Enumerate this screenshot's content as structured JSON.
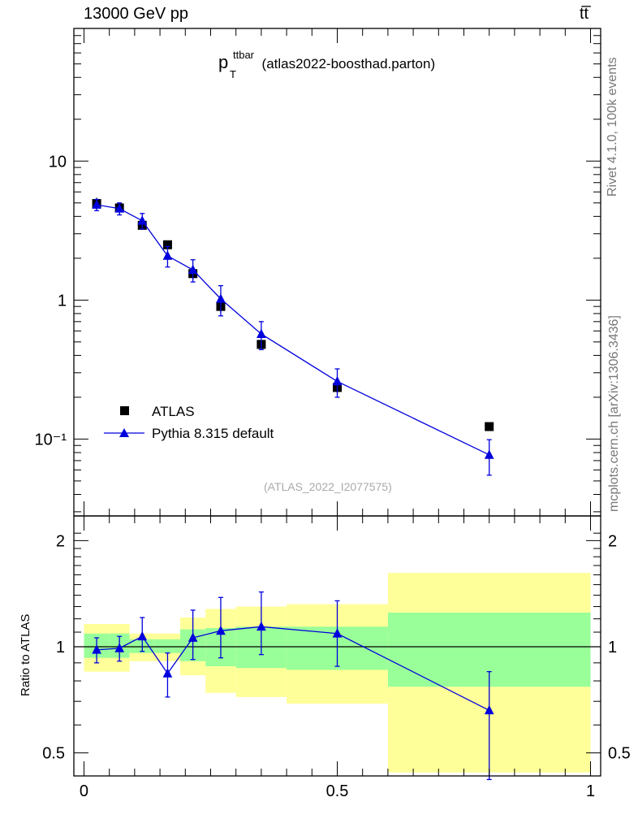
{
  "header": {
    "left": "13000 GeV pp",
    "right": "tt̅"
  },
  "side_labels": {
    "rivet": "Rivet 4.1.0,  100k events",
    "mcplots": "mcplots.cern.ch [arXiv:1306.3436]"
  },
  "chart_data": [
    {
      "type": "scatter",
      "title_main": "p",
      "title_sup": "ttbar",
      "title_sub": "T",
      "title_rest": "(atlas2022-boosthad.parton)",
      "watermark": "(ATLAS_2022_I2077575)",
      "yscale": "log",
      "ylim": [
        0.028,
        90
      ],
      "xlim": [
        -0.02,
        1.02
      ],
      "ytick_labels": [
        "10",
        "1",
        "10⁻¹"
      ],
      "legend": {
        "placement": "bottom-left",
        "entries": [
          "ATLAS",
          "Pythia 8.315 default"
        ]
      },
      "series": [
        {
          "name": "ATLAS",
          "marker": "square",
          "color": "#000000",
          "x": [
            0.025,
            0.07,
            0.115,
            0.165,
            0.215,
            0.27,
            0.35,
            0.5,
            0.8
          ],
          "y": [
            4.95,
            4.6,
            3.45,
            2.5,
            1.55,
            0.9,
            0.48,
            0.235,
            0.123
          ],
          "err": [
            0.5,
            0.45,
            0.25,
            0.15,
            0.15,
            0.09,
            0.03,
            0.025,
            0.006
          ]
        },
        {
          "name": "Pythia 8.315 default",
          "marker": "triangle",
          "color": "#0000dd",
          "x": [
            0.025,
            0.07,
            0.115,
            0.165,
            0.215,
            0.27,
            0.35,
            0.5,
            0.8
          ],
          "y": [
            4.85,
            4.55,
            3.72,
            2.08,
            1.65,
            1.02,
            0.57,
            0.26,
            0.077
          ],
          "err": [
            0.45,
            0.45,
            0.48,
            0.35,
            0.3,
            0.25,
            0.13,
            0.06,
            0.022
          ]
        }
      ]
    },
    {
      "type": "line",
      "ylabel": "Ratio to ATLAS",
      "yscale": "log",
      "ylim": [
        0.43,
        2.35
      ],
      "xlim": [
        -0.02,
        1.02
      ],
      "ytick_labels": [
        "2",
        "1",
        "0.5"
      ],
      "xtick_labels": [
        "0",
        "0.5",
        "1"
      ],
      "reference_line": 1.0,
      "bands": [
        {
          "x0": 0.0,
          "x1": 0.05,
          "inner": [
            0.93,
            1.09
          ],
          "outer": [
            0.85,
            1.16
          ]
        },
        {
          "x0": 0.05,
          "x1": 0.09,
          "inner": [
            0.93,
            1.09
          ],
          "outer": [
            0.85,
            1.16
          ]
        },
        {
          "x0": 0.09,
          "x1": 0.14,
          "inner": [
            0.96,
            1.05
          ],
          "outer": [
            0.91,
            1.09
          ]
        },
        {
          "x0": 0.14,
          "x1": 0.19,
          "inner": [
            0.96,
            1.05
          ],
          "outer": [
            0.91,
            1.09
          ]
        },
        {
          "x0": 0.19,
          "x1": 0.24,
          "inner": [
            0.91,
            1.12
          ],
          "outer": [
            0.83,
            1.21
          ]
        },
        {
          "x0": 0.24,
          "x1": 0.3,
          "inner": [
            0.88,
            1.13
          ],
          "outer": [
            0.74,
            1.28
          ]
        },
        {
          "x0": 0.3,
          "x1": 0.4,
          "inner": [
            0.87,
            1.14
          ],
          "outer": [
            0.72,
            1.3
          ]
        },
        {
          "x0": 0.4,
          "x1": 0.6,
          "inner": [
            0.86,
            1.14
          ],
          "outer": [
            0.69,
            1.32
          ]
        },
        {
          "x0": 0.6,
          "x1": 1.0,
          "inner": [
            0.77,
            1.25
          ],
          "outer": [
            0.44,
            1.62
          ]
        }
      ],
      "series": [
        {
          "name": "Pythia 8.315 default / ATLAS",
          "marker": "triangle",
          "color": "#0000dd",
          "x": [
            0.025,
            0.07,
            0.115,
            0.165,
            0.215,
            0.27,
            0.35,
            0.5,
            0.8
          ],
          "y": [
            0.98,
            0.99,
            1.07,
            0.84,
            1.06,
            1.11,
            1.14,
            1.09,
            0.66
          ],
          "err_lo": [
            0.08,
            0.08,
            0.1,
            0.12,
            0.14,
            0.18,
            0.19,
            0.21,
            0.24
          ],
          "err_hi": [
            0.08,
            0.08,
            0.14,
            0.12,
            0.21,
            0.27,
            0.29,
            0.26,
            0.19
          ]
        }
      ]
    }
  ]
}
